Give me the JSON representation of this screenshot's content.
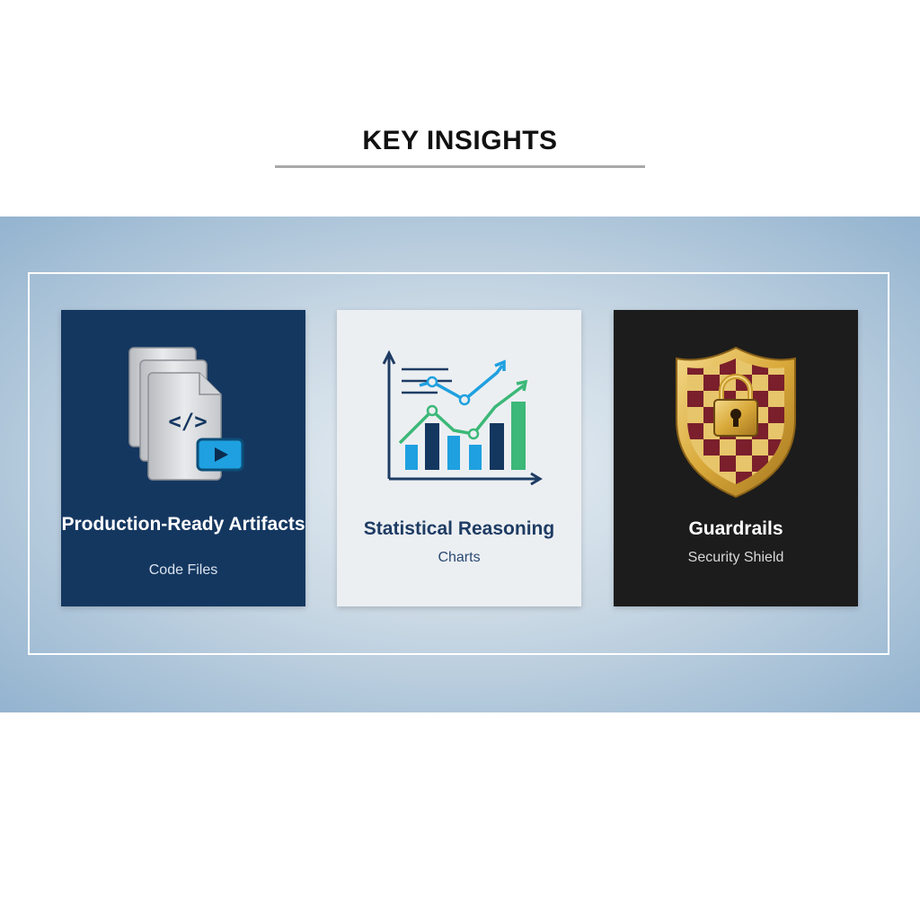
{
  "header": {
    "title": "KEY INSIGHTS"
  },
  "cards": [
    {
      "title": "Production-Ready Artifacts",
      "subtitle": "Code Files",
      "icon": "code-files-icon",
      "background": "#143760"
    },
    {
      "title": "Statistical Reasoning",
      "subtitle": "Charts",
      "icon": "charts-icon",
      "background": "#eceff2"
    },
    {
      "title": "Guardrails",
      "subtitle": "Security Shield",
      "icon": "security-shield-icon",
      "background": "#1c1c1c"
    }
  ],
  "colors": {
    "navy": "#143760",
    "accent_blue": "#1fa0e0",
    "accent_green": "#3cb878",
    "gold": "#d9a93a",
    "maroon": "#7a1f2b"
  }
}
